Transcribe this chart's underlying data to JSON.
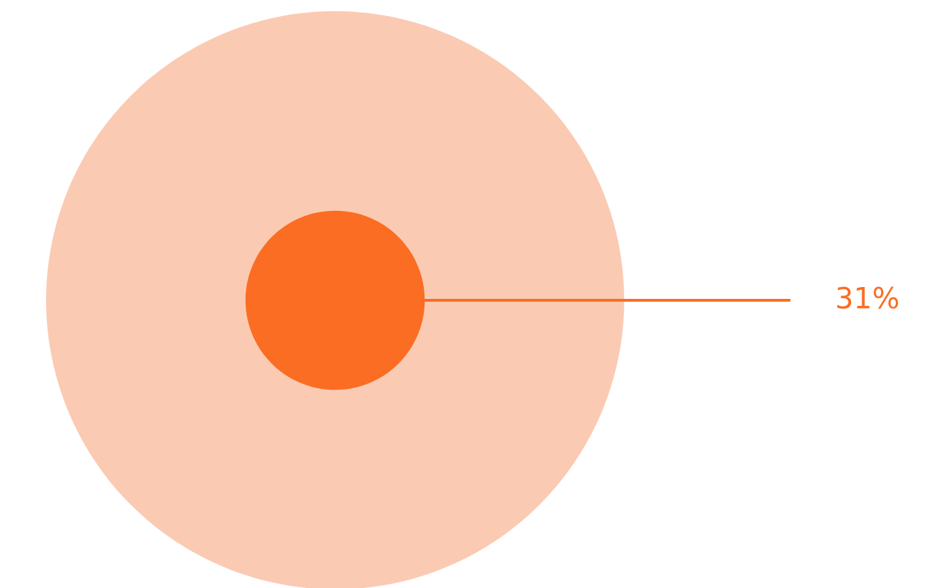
{
  "chart_data": {
    "type": "other",
    "color": "#fbcab3",
    "series": [
      {
        "color": "#fb6d22",
        "values": [
          31
        ],
        "value_labels": [
          "31%"
        ]
      }
    ]
  }
}
